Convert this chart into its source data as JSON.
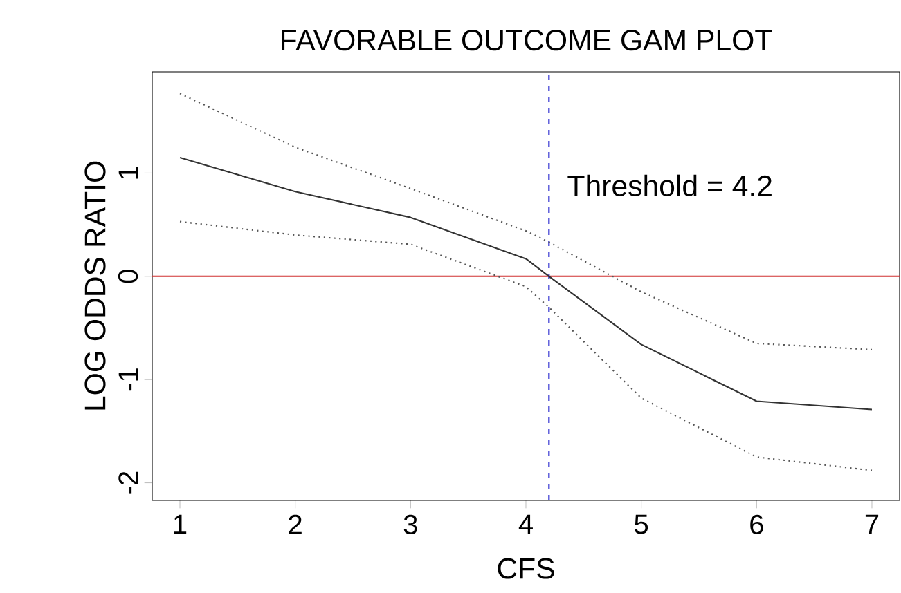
{
  "chart_data": {
    "type": "line",
    "title": "FAVORABLE OUTCOME GAM PLOT",
    "xlabel": "CFS",
    "ylabel": "LOG ODDS RATIO",
    "x": [
      1,
      2,
      3,
      4,
      4.2,
      5,
      6,
      7
    ],
    "series": [
      {
        "color": "#333333",
        "line_style": "solid",
        "values": [
          1.15,
          0.82,
          0.57,
          0.17,
          0.0,
          -0.66,
          -1.21,
          -1.29
        ]
      },
      {
        "color": "#555555",
        "line_style": "dotted",
        "values": [
          1.77,
          1.25,
          0.85,
          0.44,
          0.33,
          -0.15,
          -0.65,
          -0.71
        ]
      },
      {
        "color": "#555555",
        "line_style": "dotted",
        "values": [
          0.53,
          0.4,
          0.31,
          -0.1,
          -0.3,
          -1.18,
          -1.75,
          -1.88
        ]
      }
    ],
    "xlim": [
      0.76,
      7.24
    ],
    "ylim": [
      -2.17,
      1.98
    ],
    "xticks": [
      1,
      2,
      3,
      4,
      5,
      6,
      7
    ],
    "yticks": [
      -2,
      -1,
      0,
      1
    ],
    "ref_lines": [
      {
        "axis": "y",
        "value": 0,
        "color": "#d03030",
        "line_style": "solid"
      },
      {
        "axis": "x",
        "value": 4.2,
        "label": "Threshold = 4.2",
        "color": "#3030d0",
        "line_style": "dashed"
      }
    ],
    "grid": false,
    "marker": "none"
  }
}
